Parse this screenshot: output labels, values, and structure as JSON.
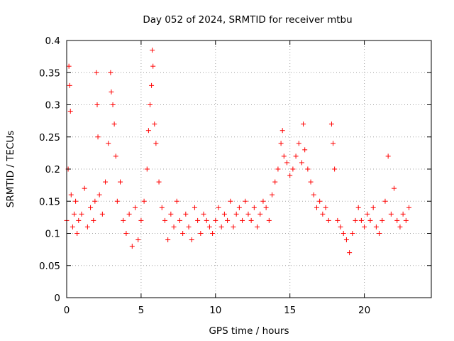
{
  "chart_data": {
    "type": "scatter",
    "title": "Day 052 of 2024, SRMTID for receiver mtbu",
    "xlabel": "GPS time / hours",
    "ylabel": "SRMTID / TECUs",
    "xlim": [
      0,
      24.5
    ],
    "ylim": [
      0,
      0.4
    ],
    "x_ticks": [
      0,
      5,
      10,
      15,
      20
    ],
    "y_ticks": [
      0,
      0.05,
      0.1,
      0.15,
      0.2,
      0.25,
      0.3,
      0.35,
      0.4
    ],
    "x_tick_labels": [
      "0",
      "5",
      "10",
      "15",
      "20"
    ],
    "y_tick_labels": [
      "0",
      "0.05",
      "0.1",
      "0.15",
      "0.2",
      "0.25",
      "0.3",
      "0.35",
      "0.4"
    ],
    "grid": true,
    "marker": "+",
    "series_color": "#ff0000",
    "series": [
      {
        "name": "SRMTID",
        "x": [
          0.0,
          0.1,
          0.15,
          0.2,
          0.25,
          0.3,
          0.4,
          0.5,
          0.6,
          0.7,
          0.8,
          1.0,
          1.2,
          1.4,
          1.6,
          1.8,
          1.9,
          2.0,
          2.05,
          2.1,
          2.2,
          2.4,
          2.6,
          2.8,
          2.95,
          3.0,
          3.1,
          3.2,
          3.3,
          3.4,
          3.6,
          3.8,
          4.0,
          4.2,
          4.4,
          4.6,
          4.8,
          5.0,
          5.2,
          5.4,
          5.5,
          5.6,
          5.7,
          5.75,
          5.8,
          5.9,
          6.0,
          6.2,
          6.4,
          6.6,
          6.8,
          7.0,
          7.2,
          7.4,
          7.6,
          7.8,
          8.0,
          8.2,
          8.4,
          8.6,
          8.8,
          9.0,
          9.2,
          9.4,
          9.6,
          9.8,
          10.0,
          10.2,
          10.4,
          10.6,
          10.8,
          11.0,
          11.2,
          11.4,
          11.6,
          11.8,
          12.0,
          12.2,
          12.4,
          12.6,
          12.8,
          13.0,
          13.2,
          13.4,
          13.6,
          13.8,
          14.0,
          14.2,
          14.4,
          14.5,
          14.6,
          14.8,
          15.0,
          15.2,
          15.4,
          15.6,
          15.8,
          15.9,
          16.0,
          16.2,
          16.4,
          16.6,
          16.8,
          17.0,
          17.2,
          17.4,
          17.6,
          17.8,
          17.9,
          18.0,
          18.2,
          18.4,
          18.6,
          18.8,
          19.0,
          19.2,
          19.4,
          19.6,
          19.8,
          20.0,
          20.2,
          20.4,
          20.6,
          20.8,
          21.0,
          21.2,
          21.4,
          21.6,
          21.8,
          22.0,
          22.2,
          22.4,
          22.6,
          22.8,
          23.0
        ],
        "y": [
          0.12,
          0.2,
          0.36,
          0.33,
          0.29,
          0.16,
          0.11,
          0.13,
          0.15,
          0.1,
          0.12,
          0.13,
          0.17,
          0.11,
          0.14,
          0.12,
          0.15,
          0.35,
          0.3,
          0.25,
          0.16,
          0.13,
          0.18,
          0.24,
          0.35,
          0.32,
          0.3,
          0.27,
          0.22,
          0.15,
          0.18,
          0.12,
          0.1,
          0.13,
          0.08,
          0.14,
          0.09,
          0.12,
          0.15,
          0.2,
          0.26,
          0.3,
          0.33,
          0.385,
          0.36,
          0.27,
          0.24,
          0.18,
          0.14,
          0.12,
          0.09,
          0.13,
          0.11,
          0.15,
          0.12,
          0.1,
          0.13,
          0.11,
          0.09,
          0.14,
          0.12,
          0.1,
          0.13,
          0.12,
          0.11,
          0.1,
          0.12,
          0.14,
          0.11,
          0.13,
          0.12,
          0.15,
          0.11,
          0.13,
          0.14,
          0.12,
          0.15,
          0.13,
          0.12,
          0.14,
          0.11,
          0.13,
          0.15,
          0.14,
          0.12,
          0.16,
          0.18,
          0.2,
          0.24,
          0.26,
          0.22,
          0.21,
          0.19,
          0.2,
          0.22,
          0.24,
          0.21,
          0.27,
          0.23,
          0.2,
          0.18,
          0.16,
          0.14,
          0.15,
          0.13,
          0.14,
          0.12,
          0.27,
          0.24,
          0.2,
          0.12,
          0.11,
          0.1,
          0.09,
          0.07,
          0.1,
          0.12,
          0.14,
          0.12,
          0.11,
          0.13,
          0.12,
          0.14,
          0.11,
          0.1,
          0.12,
          0.15,
          0.22,
          0.13,
          0.17,
          0.12,
          0.11,
          0.13,
          0.12,
          0.14
        ]
      }
    ]
  }
}
